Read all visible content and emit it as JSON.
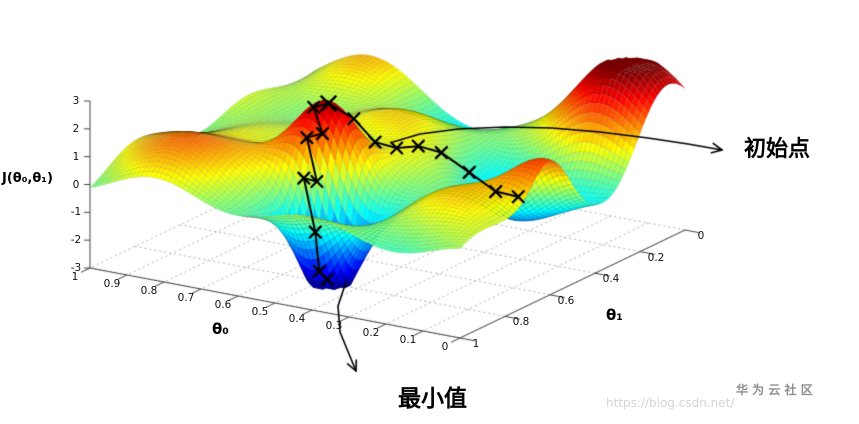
{
  "chart_data": {
    "type": "surface3d",
    "colormap": "jet",
    "title": "",
    "zlabel": "J(θ₀,θ₁)",
    "xlabel": "θ₀",
    "ylabel": "θ₁",
    "x_range": [
      0,
      1
    ],
    "y_range": [
      0,
      1
    ],
    "z_range": [
      -3,
      3
    ],
    "x_ticks": [
      "1",
      "0.9",
      "0.8",
      "0.7",
      "0.6",
      "0.5",
      "0.4",
      "0.3",
      "0.2",
      "0.1",
      "0"
    ],
    "y_ticks": [
      "0",
      "0.2",
      "0.4",
      "0.6",
      "0.8",
      "1"
    ],
    "z_ticks": [
      "3",
      "2",
      "1",
      "0",
      "-1",
      "-2",
      "-3"
    ],
    "grid": "dotted-floor",
    "surface_model": {
      "base_waves": [
        {
          "amp": 0.9,
          "fx": 1.3,
          "fy": 1.2,
          "px": 0.8,
          "py": 0.4,
          "mode": "sincos"
        },
        {
          "amp": 0.3,
          "fx": 2.3,
          "fy": 2.1,
          "px": 2.0,
          "py": 1.0,
          "mode": "sinsin"
        }
      ],
      "bumps": [
        {
          "amp": 3.3,
          "cx": 0.12,
          "cy": 0.12,
          "s": 0.03,
          "label": "back-right red peak"
        },
        {
          "amp": 3.4,
          "cx": 0.55,
          "cy": 0.68,
          "s": 0.012,
          "label": "initial-point peak"
        },
        {
          "amp": -3.4,
          "cx": 0.48,
          "cy": 0.8,
          "s": 0.008,
          "label": "front deep minimum"
        },
        {
          "amp": -1.6,
          "cx": 0.25,
          "cy": 0.33,
          "s": 0.025,
          "label": "right local minimum"
        },
        {
          "amp": 1.6,
          "cx": 0.02,
          "cy": 0.6,
          "s": 0.012,
          "label": "right-edge red ridge"
        },
        {
          "amp": 1.2,
          "cx": 0.85,
          "cy": 0.35,
          "s": 0.04,
          "label": "left bump"
        },
        {
          "amp": 1.0,
          "cx": 0.8,
          "cy": 0.85,
          "s": 0.03,
          "label": "front-left bump"
        }
      ]
    },
    "marker": "x",
    "path_color": "#000000",
    "descent_paths": [
      {
        "name": "path-to-front-minimum",
        "points": [
          [
            0.55,
            0.68
          ],
          [
            0.578,
            0.7
          ],
          [
            0.545,
            0.715
          ],
          [
            0.575,
            0.735
          ],
          [
            0.54,
            0.748
          ],
          [
            0.565,
            0.765
          ],
          [
            0.528,
            0.775
          ],
          [
            0.508,
            0.79
          ],
          [
            0.48,
            0.8
          ]
        ]
      },
      {
        "name": "path-to-right-minimum",
        "points": [
          [
            0.55,
            0.68
          ],
          [
            0.515,
            0.625
          ],
          [
            0.488,
            0.575
          ],
          [
            0.46,
            0.525
          ],
          [
            0.432,
            0.475
          ],
          [
            0.4,
            0.425
          ],
          [
            0.355,
            0.375
          ],
          [
            0.3,
            0.348
          ],
          [
            0.25,
            0.33
          ]
        ]
      }
    ],
    "annotations": [
      {
        "text": "初始点",
        "target": "initial point at top of center peak"
      },
      {
        "text": "最小值",
        "target": "front minimum of surface"
      }
    ]
  },
  "watermark": {
    "site": "华 为 云 社 区",
    "url": "https://blog.csdn.net/"
  }
}
